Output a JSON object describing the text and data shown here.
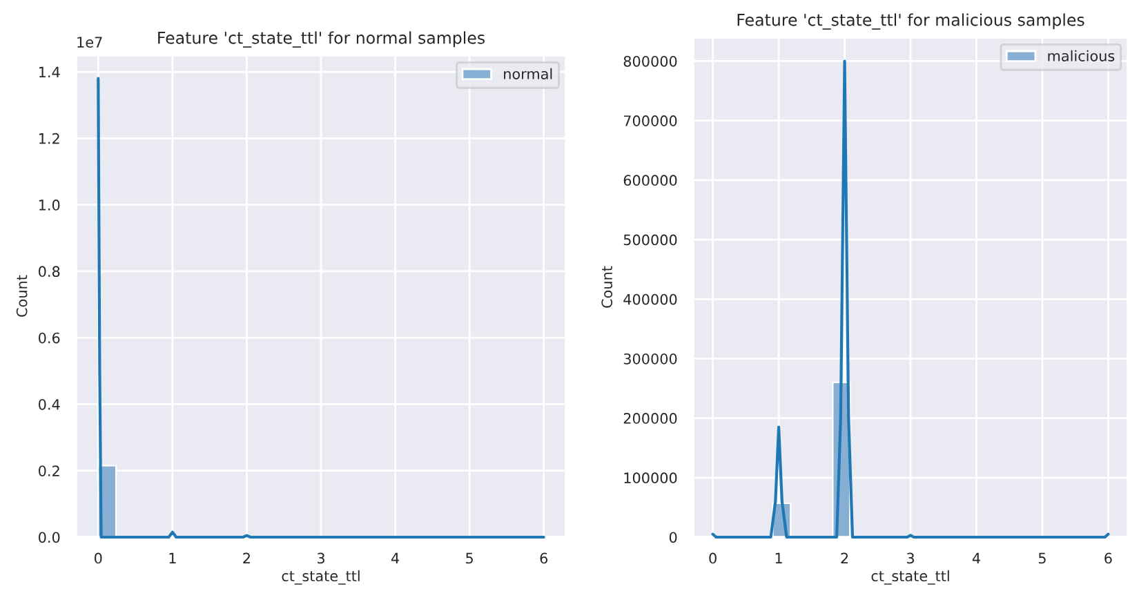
{
  "chart_data": [
    {
      "type": "histogram",
      "title": "Feature 'ct_state_ttl' for normal samples",
      "xlabel": "ct_state_ttl",
      "ylabel": "Count",
      "bins": [
        0,
        0.24
      ],
      "series": [
        {
          "type": "histogram",
          "name": "normal",
          "color": "#86afd3",
          "values": [
            0.215
          ]
        },
        {
          "type": "line",
          "color": "#1f77b4",
          "x": [
            0,
            0.02,
            0.04,
            0.95,
            1,
            1.05,
            1.95,
            2,
            2.05,
            6
          ],
          "values": [
            1.38,
            0.5,
            0,
            0,
            0.015,
            0,
            0,
            0.005,
            0,
            0
          ]
        }
      ],
      "xlim": [
        -0.3,
        6.3
      ],
      "xticks": [
        0,
        1,
        2,
        3,
        4,
        5,
        6
      ],
      "ylim": [
        0,
        1.45
      ],
      "yticks": [
        {
          "value": 0,
          "label": "0.0"
        },
        0.2,
        0.4,
        0.6,
        0.8,
        {
          "value": 1,
          "label": "1.0"
        },
        1.2,
        1.4
      ],
      "annotations": [
        "1e7"
      ],
      "grid": true,
      "legend": "top right"
    },
    {
      "type": "histogram",
      "title": "Feature 'ct_state_ttl' for malicious samples",
      "xlabel": "ct_state_ttl",
      "ylabel": "Count",
      "bins": [
        0.91,
        1.18,
        1.82,
        2.08
      ],
      "series": [
        {
          "type": "histogram",
          "name": "malicious",
          "color": "#86afd3",
          "values": [
            57000,
            0,
            260000
          ]
        },
        {
          "type": "line",
          "color": "#1f77b4",
          "x": [
            0,
            0.05,
            0.88,
            0.95,
            1,
            1.05,
            1.12,
            1.88,
            1.94,
            2,
            2.06,
            2.12,
            2.95,
            3,
            3.05,
            5.95,
            6
          ],
          "values": [
            5000,
            0,
            0,
            60000,
            185000,
            60000,
            0,
            0,
            200000,
            800000,
            200000,
            0,
            0,
            3000,
            0,
            0,
            5000
          ]
        }
      ],
      "xlim": [
        -0.3,
        6.3
      ],
      "xticks": [
        0,
        1,
        2,
        3,
        4,
        5,
        6
      ],
      "ylim": [
        0,
        840000
      ],
      "yticks": [
        0,
        100000,
        200000,
        300000,
        400000,
        500000,
        600000,
        700000,
        800000
      ],
      "grid": true,
      "legend": "top right"
    }
  ]
}
